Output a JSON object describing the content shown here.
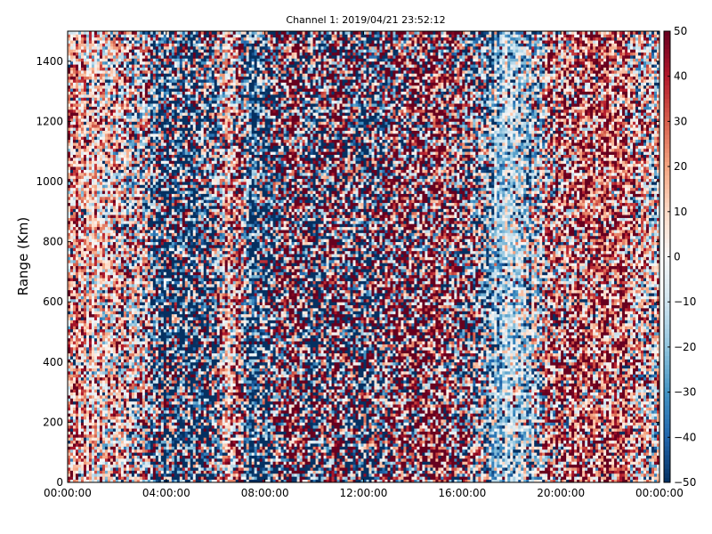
{
  "chart_data": {
    "type": "heatmap",
    "title": "Channel 1: 2019/04/21 23:52:12",
    "xlabel": "",
    "ylabel": "Range (Km)",
    "x_ticks": [
      "00:00:00",
      "04:00:00",
      "08:00:00",
      "12:00:00",
      "16:00:00",
      "20:00:00",
      "00:00:00"
    ],
    "x_range_hours": [
      0,
      24
    ],
    "y_ticks": [
      0,
      200,
      400,
      600,
      800,
      1000,
      1200,
      1400
    ],
    "ylim": [
      0,
      1500
    ],
    "colorbar": {
      "ticks": [
        50,
        40,
        30,
        20,
        10,
        0,
        -10,
        -20,
        -30,
        -40,
        -50
      ],
      "range": [
        -50,
        50
      ],
      "colormap": "RdBu_r",
      "colors": [
        "#053061",
        "#2166ac",
        "#4393c3",
        "#92c5de",
        "#d1e5f0",
        "#f7f7f7",
        "#fddbc7",
        "#f4a582",
        "#d6604d",
        "#b2182b",
        "#67001f"
      ]
    },
    "time_profile": {
      "hours": [
        0,
        1,
        2,
        3,
        3.5,
        4,
        5,
        6,
        6.5,
        7,
        7.5,
        8,
        9,
        10,
        11,
        12,
        13,
        14,
        15,
        16,
        17,
        17.5,
        18,
        19,
        19.5,
        20,
        21,
        22,
        23,
        24
      ],
      "mean_value": [
        12,
        15,
        12,
        5,
        -10,
        -25,
        -20,
        -10,
        20,
        15,
        -35,
        -20,
        25,
        -10,
        20,
        -20,
        15,
        25,
        30,
        10,
        -15,
        -15,
        -15,
        -5,
        15,
        20,
        25,
        30,
        15,
        10
      ],
      "spread": [
        30,
        25,
        35,
        45,
        60,
        70,
        70,
        65,
        25,
        60,
        45,
        70,
        80,
        80,
        80,
        80,
        75,
        75,
        60,
        70,
        45,
        20,
        20,
        40,
        50,
        45,
        40,
        35,
        40,
        40
      ]
    }
  }
}
